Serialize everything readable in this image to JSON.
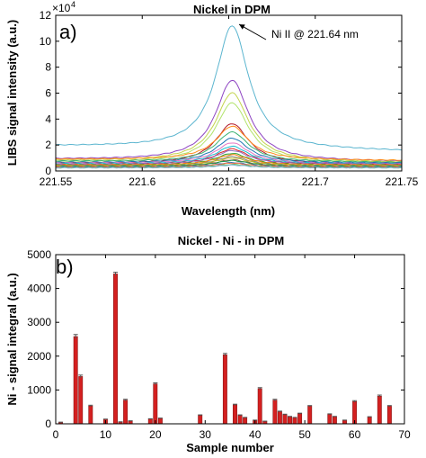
{
  "chart_data": [
    {
      "type": "line",
      "panel_label": "a)",
      "title": "Nickel in DPM",
      "xlabel": "Wavelength (nm)",
      "ylabel": "LIBS signal intensity (a.u.)",
      "y_exponent": "×10",
      "y_exponent_power": "4",
      "xlim": [
        221.55,
        221.75
      ],
      "ylim": [
        0,
        120000
      ],
      "xticks": [
        "221.55",
        "221.6",
        "221.65",
        "221.7",
        "221.75"
      ],
      "yticks": [
        "0",
        "2",
        "4",
        "6",
        "8",
        "10",
        "12"
      ],
      "grid": false,
      "annotation": "Ni II @ 221.64 nm",
      "annotation_target": [
        221.656,
        113000
      ],
      "peak_center": 221.652,
      "peak_width": 0.0115,
      "x": [
        221.55,
        221.6,
        221.65,
        221.7,
        221.75
      ],
      "series": [
        {
          "baseline": 19000,
          "slope": -4000,
          "peak": 95000,
          "color": "#5bb5cf"
        },
        {
          "baseline": 9000,
          "slope": -2000,
          "peak": 62000,
          "color": "#8e44c2"
        },
        {
          "baseline": 8000,
          "slope": -1500,
          "peak": 53000,
          "color": "#c4d44e"
        },
        {
          "baseline": 7000,
          "slope": -1000,
          "peak": 46000,
          "color": "#b1e36b"
        },
        {
          "baseline": 6000,
          "slope": -1000,
          "peak": 31000,
          "color": "#b2182b"
        },
        {
          "baseline": 9000,
          "slope": -1000,
          "peak": 26000,
          "color": "#ff8c1a"
        },
        {
          "baseline": 7500,
          "slope": -1000,
          "peak": 23000,
          "color": "#3cb371"
        },
        {
          "baseline": 6500,
          "slope": -500,
          "peak": 19000,
          "color": "#1f77b4"
        },
        {
          "baseline": 6000,
          "slope": -500,
          "peak": 16000,
          "color": "#e377c2"
        },
        {
          "baseline": 5500,
          "slope": 0,
          "peak": 13500,
          "color": "#17becf"
        },
        {
          "baseline": 5000,
          "slope": 0,
          "peak": 12000,
          "color": "#d62728"
        },
        {
          "baseline": 5000,
          "slope": 500,
          "peak": 10500,
          "color": "#9467bd"
        },
        {
          "baseline": 4500,
          "slope": 0,
          "peak": 9000,
          "color": "#2ca02c"
        },
        {
          "baseline": 4500,
          "slope": 0,
          "peak": 8000,
          "color": "#ff7f0e"
        },
        {
          "baseline": 4000,
          "slope": 0,
          "peak": 7000,
          "color": "#7f7f7f"
        },
        {
          "baseline": 4000,
          "slope": 0,
          "peak": 6000,
          "color": "#bcbd22"
        },
        {
          "baseline": 3500,
          "slope": 0,
          "peak": 5000,
          "color": "#8c564b"
        },
        {
          "baseline": 3500,
          "slope": 0,
          "peak": 4500,
          "color": "#1a9850"
        },
        {
          "baseline": 3000,
          "slope": 0,
          "peak": 3500,
          "color": "#4575b4"
        },
        {
          "baseline": 3000,
          "slope": 0,
          "peak": 3000,
          "color": "#f46d43"
        },
        {
          "baseline": 2500,
          "slope": 0,
          "peak": 2500,
          "color": "#66bd63"
        },
        {
          "baseline": 2500,
          "slope": 0,
          "peak": 2000,
          "color": "#74add1"
        }
      ]
    },
    {
      "type": "bar",
      "panel_label": "b)",
      "title": "Nickel - Ni - in DPM",
      "xlabel": "Sample number",
      "ylabel": "Ni - signal integral (a.u.)",
      "xlim": [
        0,
        70
      ],
      "ylim": [
        0,
        5000
      ],
      "xticks": [
        "0",
        "10",
        "20",
        "30",
        "40",
        "50",
        "60",
        "70"
      ],
      "yticks": [
        "0",
        "1000",
        "2000",
        "3000",
        "4000",
        "5000"
      ],
      "grid": false,
      "bar_color": "#d42020",
      "error_color": "#555555",
      "x": [
        1,
        2,
        3,
        4,
        5,
        6,
        7,
        8,
        9,
        10,
        11,
        12,
        13,
        14,
        15,
        16,
        17,
        18,
        19,
        20,
        21,
        22,
        23,
        24,
        25,
        26,
        27,
        28,
        29,
        30,
        31,
        32,
        33,
        34,
        35,
        36,
        37,
        38,
        39,
        40,
        41,
        42,
        43,
        44,
        45,
        46,
        47,
        48,
        49,
        50,
        51,
        52,
        53,
        54,
        55,
        56,
        57,
        58,
        59,
        60,
        61,
        62,
        63,
        64,
        65,
        66,
        67
      ],
      "values": [
        40,
        0,
        0,
        2580,
        1400,
        0,
        530,
        0,
        0,
        130,
        0,
        4430,
        50,
        700,
        80,
        0,
        0,
        0,
        140,
        1180,
        160,
        0,
        0,
        0,
        0,
        0,
        0,
        0,
        250,
        0,
        0,
        0,
        0,
        2040,
        0,
        560,
        250,
        180,
        0,
        100,
        1040,
        70,
        0,
        700,
        360,
        270,
        210,
        180,
        300,
        0,
        520,
        0,
        0,
        0,
        280,
        210,
        0,
        100,
        0,
        660,
        0,
        0,
        200,
        0,
        820,
        0,
        520
      ],
      "errors": [
        10,
        0,
        0,
        60,
        40,
        0,
        20,
        0,
        0,
        10,
        0,
        50,
        10,
        25,
        10,
        0,
        0,
        0,
        10,
        30,
        10,
        0,
        0,
        0,
        0,
        0,
        0,
        0,
        15,
        0,
        0,
        0,
        0,
        40,
        0,
        20,
        15,
        10,
        0,
        10,
        30,
        10,
        0,
        25,
        15,
        15,
        10,
        10,
        15,
        0,
        20,
        0,
        0,
        0,
        15,
        10,
        0,
        10,
        0,
        25,
        0,
        0,
        10,
        0,
        30,
        0,
        20
      ]
    }
  ]
}
